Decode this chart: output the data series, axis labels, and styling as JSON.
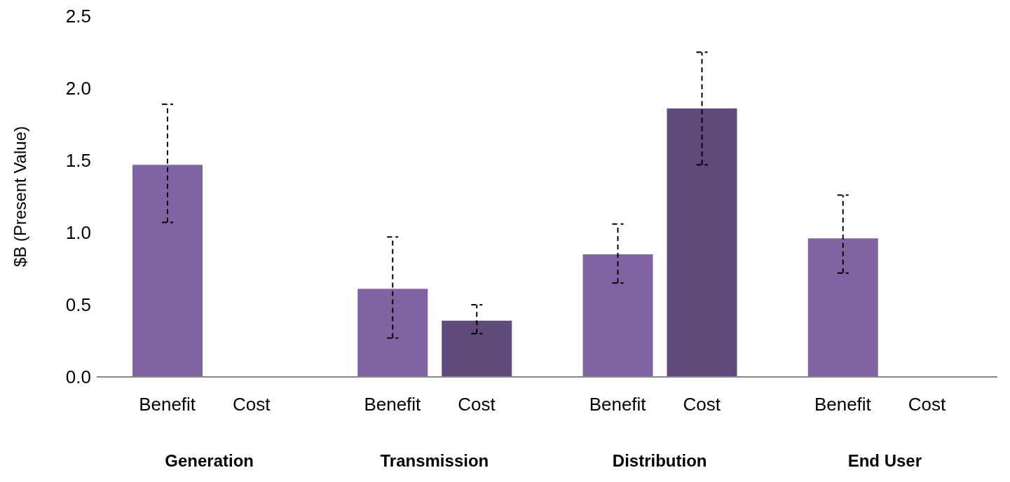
{
  "chart_data": {
    "type": "bar",
    "ylabel": "$B (Present Value)",
    "categories": [
      "Generation",
      "Transmission",
      "Distribution",
      "End User"
    ],
    "ylim": [
      0,
      2.5
    ],
    "yticks": [
      {
        "value": 0,
        "label": "0.0"
      },
      0.5,
      {
        "value": 1,
        "label": "1.0"
      },
      1.5,
      {
        "value": 2,
        "label": "2.0"
      },
      2.5
    ],
    "series": [
      {
        "name": "Benefit",
        "color": "#8064a2",
        "values": [
          1.47,
          0.61,
          0.85,
          0.96
        ],
        "errors": [
          [
            1.07,
            1.89
          ],
          [
            0.27,
            0.97
          ],
          [
            0.65,
            1.06
          ],
          [
            0.72,
            1.26
          ]
        ]
      },
      {
        "name": "Cost",
        "color": "#604a7b",
        "values": [
          null,
          0.39,
          1.86,
          null
        ],
        "errors": [
          null,
          [
            0.3,
            0.5
          ],
          [
            1.47,
            2.25
          ],
          null
        ]
      }
    ],
    "grid": false,
    "legend": false
  }
}
